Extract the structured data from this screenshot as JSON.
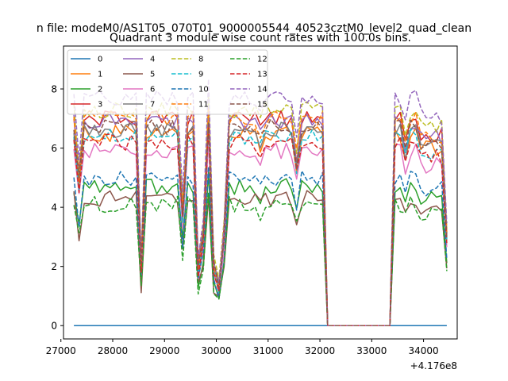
{
  "chart_data": {
    "type": "line",
    "suptitle": "n file: modeM0/AS1T05_070T01_9000005544_40523cztM0_level2_quad_clean",
    "title": "Quadrant 3 module wise count rates with 100.0s bins.",
    "xlabel": "",
    "ylabel": "",
    "offset_label": "+4.176e8",
    "xlim": [
      27050,
      34650
    ],
    "ylim": [
      -0.45,
      9.45
    ],
    "x_ticks": [
      27000,
      28000,
      29000,
      30000,
      31000,
      32000,
      33000,
      34000
    ],
    "y_ticks": [
      0,
      2,
      4,
      6,
      8
    ],
    "x_tick_labels": [
      "27000",
      "28000",
      "29000",
      "30000",
      "31000",
      "32000",
      "33000",
      "34000"
    ],
    "y_tick_labels": [
      "0",
      "2",
      "4",
      "6",
      "8"
    ],
    "grid": false,
    "legend": {
      "placement": "top-left",
      "columns": 4
    },
    "x_segments": [
      [
        27250,
        32050
      ],
      [
        32150,
        33350
      ],
      [
        33450,
        34450
      ]
    ],
    "bin": 100,
    "series": [
      {
        "name": "0",
        "color": "#1f77b4",
        "dash": "solid",
        "base": 0.0
      },
      {
        "name": "1",
        "color": "#ff7f0e",
        "dash": "solid",
        "base": 6.5
      },
      {
        "name": "2",
        "color": "#2ca02c",
        "dash": "solid",
        "base": 4.7
      },
      {
        "name": "3",
        "color": "#d62728",
        "dash": "solid",
        "base": 7.0
      },
      {
        "name": "4",
        "color": "#9467bd",
        "dash": "solid",
        "base": 6.9
      },
      {
        "name": "5",
        "color": "#8c564b",
        "dash": "solid",
        "base": 4.3
      },
      {
        "name": "6",
        "color": "#e377c2",
        "dash": "solid",
        "base": 5.9
      },
      {
        "name": "7",
        "color": "#7f7f7f",
        "dash": "solid",
        "base": 6.6
      },
      {
        "name": "8",
        "color": "#bcbd22",
        "dash": "dashed",
        "base": 7.3
      },
      {
        "name": "9",
        "color": "#17becf",
        "dash": "dashed",
        "base": 6.4
      },
      {
        "name": "10",
        "color": "#1f77b4",
        "dash": "dashed",
        "base": 5.0
      },
      {
        "name": "11",
        "color": "#ff7f0e",
        "dash": "dashed",
        "base": 7.0
      },
      {
        "name": "12",
        "color": "#2ca02c",
        "dash": "dashed",
        "base": 4.1
      },
      {
        "name": "13",
        "color": "#d62728",
        "dash": "dashed",
        "base": 6.2
      },
      {
        "name": "14",
        "color": "#9467bd",
        "dash": "dashed",
        "base": 7.7
      },
      {
        "name": "15",
        "color": "#8c564b",
        "dash": "dashed",
        "base": 6.7
      }
    ]
  }
}
